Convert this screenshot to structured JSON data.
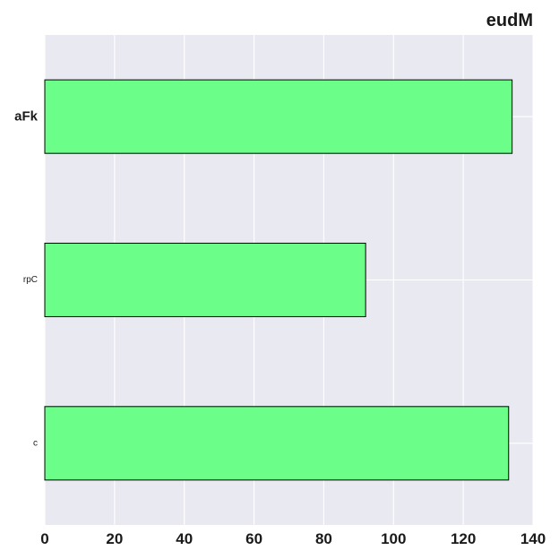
{
  "chart_data": {
    "type": "bar",
    "orientation": "horizontal",
    "title": "eudM",
    "xlabel": "",
    "ylabel": "",
    "categories": [
      "aFk",
      "rpC",
      "c"
    ],
    "values": [
      134,
      92,
      133
    ],
    "xlim": [
      0,
      140
    ],
    "x_ticks": [
      0,
      20,
      40,
      60,
      80,
      100,
      120,
      140
    ],
    "grid": true,
    "legend": "none",
    "colors": {
      "bar_fill": "#6bff8a",
      "bar_edge": "#000000",
      "plot_background": "#e9e9f1",
      "grid": "#ffffff"
    }
  }
}
